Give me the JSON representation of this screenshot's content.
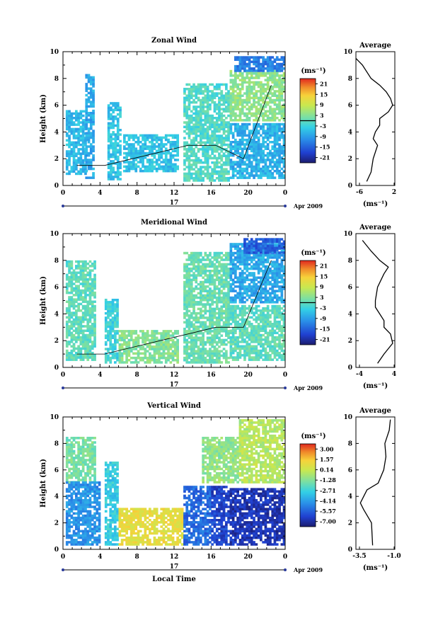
{
  "chart_data": [
    {
      "type": "heatmap",
      "title": "Zonal Wind",
      "ylabel": "Height (km)",
      "ylim": [
        0,
        10
      ],
      "yticks": [
        "0",
        "2",
        "4",
        "6",
        "8",
        "10"
      ],
      "xlim": [
        0,
        24
      ],
      "xticks": [
        "0",
        "4",
        "8",
        "12",
        "16",
        "20",
        "0"
      ],
      "date_label": "17",
      "month_label": "Apr 2009",
      "colorbar": {
        "unit": "(ms⁻¹)",
        "ticks": [
          "21",
          "15",
          "9",
          "3",
          "-3",
          "-9",
          "-15",
          "-21"
        ],
        "range": [
          -24,
          24
        ]
      },
      "base_value": -6,
      "cells": [
        {
          "t": [
            0.3,
            2.5
          ],
          "h": [
            0.8,
            5.5
          ],
          "v": -6
        },
        {
          "t": [
            2.4,
            3.4
          ],
          "h": [
            0.5,
            8.2
          ],
          "v": -8
        },
        {
          "t": [
            4.8,
            6.2
          ],
          "h": [
            0.4,
            6.2
          ],
          "v": -5
        },
        {
          "t": [
            6.5,
            12.5
          ],
          "h": [
            1.0,
            3.8
          ],
          "v": -5
        },
        {
          "t": [
            13.0,
            18.0
          ],
          "h": [
            0.3,
            7.5
          ],
          "v": -1
        },
        {
          "t": [
            18.0,
            24.0
          ],
          "h": [
            4.8,
            8.5
          ],
          "v": 4
        },
        {
          "t": [
            18.5,
            24.0
          ],
          "h": [
            8.5,
            9.6
          ],
          "v": -12
        },
        {
          "t": [
            18.0,
            24.0
          ],
          "h": [
            0.5,
            4.5
          ],
          "v": -7
        }
      ],
      "contour_zero_km": [
        1.5,
        1.5,
        2.0,
        2.5,
        3.0,
        3.0,
        2.0,
        7.5
      ]
    },
    {
      "type": "line",
      "title": "Average",
      "xlabel": "(ms⁻¹)",
      "xlim": [
        -6,
        3
      ],
      "xticks": [
        "-6",
        "2"
      ],
      "ylim": [
        0,
        10
      ],
      "yticks": [
        "0",
        "2",
        "4",
        "6",
        "8",
        "10"
      ],
      "series": [
        {
          "x": [
            -3.5,
            -2.5,
            -2.0,
            -1.0,
            -2.0,
            -1.5,
            -0.5,
            -0.5,
            1.5,
            2.5,
            2.0,
            1.0,
            -0.5,
            -2.5,
            -4.5,
            -6.0
          ],
          "y": [
            0.3,
            1.0,
            2.0,
            3.0,
            3.5,
            4.0,
            4.5,
            5.0,
            5.5,
            6.0,
            6.5,
            7.0,
            7.5,
            8.0,
            9.0,
            9.5
          ]
        }
      ]
    },
    {
      "type": "heatmap",
      "title": "Meridional Wind",
      "ylabel": "Height (km)",
      "ylim": [
        0,
        10
      ],
      "yticks": [
        "0",
        "2",
        "4",
        "6",
        "8",
        "10"
      ],
      "xlim": [
        0,
        24
      ],
      "xticks": [
        "0",
        "4",
        "8",
        "12",
        "16",
        "20",
        "0"
      ],
      "date_label": "17",
      "month_label": "Apr 2009",
      "colorbar": {
        "unit": "(ms⁻¹)",
        "ticks": [
          "21",
          "15",
          "9",
          "3",
          "-3",
          "-9",
          "-15",
          "-21"
        ],
        "range": [
          -24,
          24
        ]
      },
      "base_value": 2,
      "cells": [
        {
          "t": [
            0.3,
            3.5
          ],
          "h": [
            0.5,
            8.0
          ],
          "v": 0
        },
        {
          "t": [
            4.5,
            6.0
          ],
          "h": [
            0.3,
            5.0
          ],
          "v": -3
        },
        {
          "t": [
            6.0,
            12.5
          ],
          "h": [
            0.3,
            2.8
          ],
          "v": 3
        },
        {
          "t": [
            13.0,
            18.0
          ],
          "h": [
            0.3,
            8.5
          ],
          "v": 1
        },
        {
          "t": [
            18.0,
            24.0
          ],
          "h": [
            4.8,
            9.2
          ],
          "v": -8
        },
        {
          "t": [
            19.5,
            24.0
          ],
          "h": [
            8.5,
            9.5
          ],
          "v": -15
        },
        {
          "t": [
            18.0,
            24.0
          ],
          "h": [
            0.5,
            4.5
          ],
          "v": 0
        }
      ],
      "contour_zero_km": [
        1.0,
        1.0,
        1.5,
        2.0,
        2.5,
        3.0,
        3.0,
        8.0
      ]
    },
    {
      "type": "line",
      "title": "Average",
      "xlabel": "(ms⁻¹)",
      "xlim": [
        -4,
        5
      ],
      "xticks": [
        "-4",
        "4"
      ],
      "ylim": [
        0,
        10
      ],
      "yticks": [
        "0",
        "2",
        "4",
        "6",
        "8",
        "10"
      ],
      "series": [
        {
          "x": [
            1.0,
            2.5,
            4.5,
            4.0,
            2.5,
            2.5,
            1.5,
            0.5,
            0.5,
            1.0,
            2.5,
            3.5,
            1.5,
            -0.5,
            -2.5
          ],
          "y": [
            0.3,
            1.0,
            1.8,
            2.5,
            3.0,
            3.5,
            4.0,
            4.5,
            5.0,
            6.0,
            7.0,
            7.5,
            8.0,
            8.7,
            9.5
          ]
        }
      ]
    },
    {
      "type": "heatmap",
      "title": "Vertical Wind",
      "ylabel": "Height (km)",
      "ylim": [
        0,
        10
      ],
      "yticks": [
        "0",
        "2",
        "4",
        "6",
        "8",
        "10"
      ],
      "xlim": [
        0,
        24
      ],
      "xticks": [
        "0",
        "4",
        "8",
        "12",
        "16",
        "20",
        "0"
      ],
      "date_label": "17",
      "month_label": "Apr 2009",
      "xlabel": "Local Time",
      "colorbar": {
        "unit": "(ms⁻¹)",
        "ticks": [
          "3.00",
          "1.57",
          "0.14",
          "-1.28",
          "-2.71",
          "-4.14",
          "-5.57",
          "-7.00"
        ],
        "range": [
          -8,
          4
        ]
      },
      "base_value": -0.5,
      "cells": [
        {
          "t": [
            0.3,
            3.5
          ],
          "h": [
            5.0,
            8.5
          ],
          "v": -1.5
        },
        {
          "t": [
            0.3,
            4.0
          ],
          "h": [
            0.3,
            5.0
          ],
          "v": -4.5
        },
        {
          "t": [
            4.5,
            6.0
          ],
          "h": [
            0.3,
            6.5
          ],
          "v": -3.0
        },
        {
          "t": [
            6.0,
            13.0
          ],
          "h": [
            0.3,
            3.0
          ],
          "v": 1.0
        },
        {
          "t": [
            13.0,
            16.0
          ],
          "h": [
            0.3,
            4.8
          ],
          "v": -5.5
        },
        {
          "t": [
            16.0,
            18.0
          ],
          "h": [
            0.3,
            4.8
          ],
          "v": -6.5
        },
        {
          "t": [
            18.0,
            24.0
          ],
          "h": [
            0.3,
            4.5
          ],
          "v": -7.0
        },
        {
          "t": [
            15.0,
            19.0
          ],
          "h": [
            5.0,
            8.5
          ],
          "v": -1.0
        },
        {
          "t": [
            19.0,
            24.0
          ],
          "h": [
            5.0,
            9.8
          ],
          "v": -0.2
        }
      ]
    },
    {
      "type": "line",
      "title": "Average",
      "xlabel": "(ms⁻¹)",
      "xlim": [
        -4.0,
        -0.5
      ],
      "xticks": [
        "-3.5",
        "-1.0"
      ],
      "ylim": [
        0,
        10
      ],
      "yticks": [
        "0",
        "2",
        "4",
        "6",
        "8",
        "10"
      ],
      "series": [
        {
          "x": [
            -2.5,
            -2.6,
            -3.3,
            -3.6,
            -3.3,
            -3.0,
            -2.0,
            -1.5,
            -1.3,
            -1.4,
            -1.0,
            -0.9
          ],
          "y": [
            0.3,
            2.0,
            3.0,
            3.5,
            4.0,
            4.5,
            5.0,
            6.0,
            7.0,
            8.0,
            9.0,
            9.8
          ]
        }
      ]
    }
  ]
}
